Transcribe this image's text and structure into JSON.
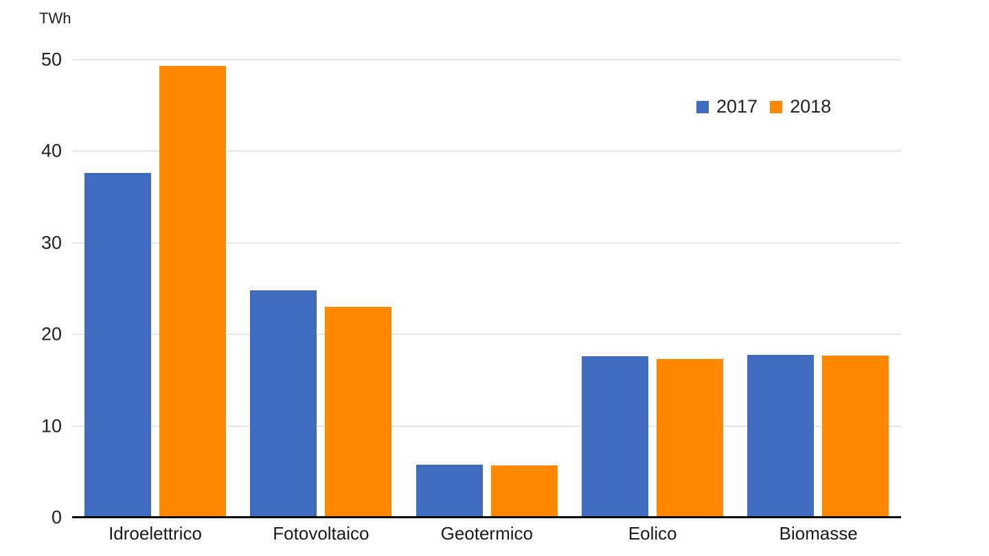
{
  "chart_data": {
    "type": "bar",
    "title": "",
    "axis_unit_label": "TWh",
    "categories": [
      "Idroelettrico",
      "Fotovoltaico",
      "Geotermico",
      "Eolico",
      "Biomasse"
    ],
    "series": [
      {
        "name": "2017",
        "color": "#3E6BBE",
        "values": [
          37.6,
          24.8,
          5.8,
          17.6,
          17.8
        ]
      },
      {
        "name": "2018",
        "color": "#FF8800",
        "values": [
          49.3,
          23.0,
          5.7,
          17.3,
          17.7
        ]
      }
    ],
    "ylim": [
      0,
      50
    ],
    "yticks": [
      0,
      10,
      20,
      30,
      40,
      50
    ],
    "grid": true,
    "legend_position": "top-right"
  },
  "colors": {
    "background": "#FFFFFF",
    "gridline": "#E6E6E6",
    "axis_line": "#000000",
    "text": "#212121",
    "series_2017": "#3E6BBE",
    "series_2018": "#FF8800"
  }
}
